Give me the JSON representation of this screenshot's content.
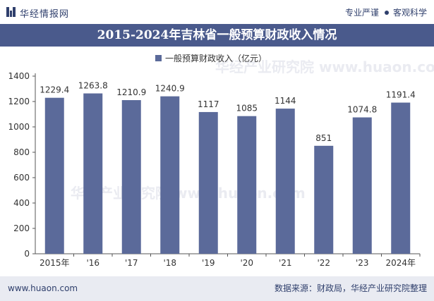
{
  "header": {
    "brand": "华经情报网",
    "slogan_left": "专业严谨",
    "slogan_right": "客观科学"
  },
  "title": "2015-2024年吉林省一般预算财政收入情况",
  "chart_data": {
    "type": "bar",
    "title": "2015-2024年吉林省一般预算财政收入情况",
    "categories": [
      "2015年",
      "'16",
      "'17",
      "'18",
      "'19",
      "'20",
      "'21",
      "'22",
      "'23",
      "2024年"
    ],
    "series": [
      {
        "name": "一般预算财政收入（亿元）",
        "values": [
          1229.4,
          1263.8,
          1210.9,
          1240.9,
          1117,
          1085,
          1144,
          851,
          1074.8,
          1191.4
        ],
        "labels": [
          "1229.4",
          "1263.8",
          "1210.9",
          "1240.9",
          "1117",
          "1085",
          "1144",
          "851",
          "1074.8",
          "1191.4"
        ],
        "color": "#5b6a9a"
      }
    ],
    "ylim": [
      0,
      1400
    ],
    "yticks": [
      0,
      200,
      400,
      600,
      800,
      1000,
      1200,
      1400
    ],
    "xlabel": "",
    "ylabel": "",
    "legend_position": "top-center",
    "grid": false,
    "watermark": "华经产业研究院  www.huaon.com"
  },
  "footer": {
    "site": "www.huaon.com",
    "source": "数据来源：财政局，华经产业研究院整理"
  }
}
